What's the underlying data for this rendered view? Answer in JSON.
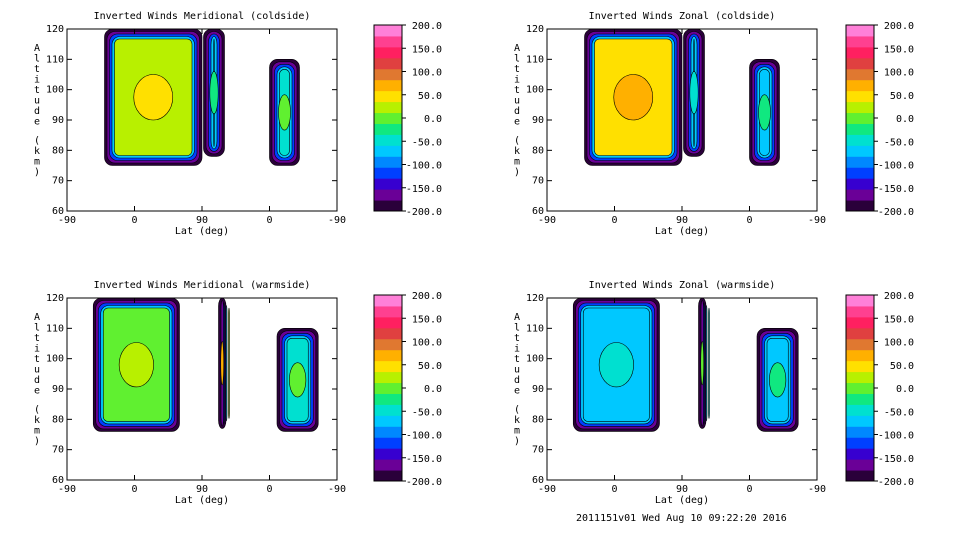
{
  "footer": "2011151v01 Wed Aug 10 09:22:20 2016",
  "colorbar": {
    "ticks": [
      "200.0",
      "150.0",
      "100.0",
      "50.0",
      "0.0",
      "-50.0",
      "-100.0",
      "-150.0",
      "-200.0"
    ],
    "colors": [
      "#2a003a",
      "#6a0097",
      "#3700d0",
      "#0040ff",
      "#0088ff",
      "#00c8ff",
      "#00e0d0",
      "#10e880",
      "#60f030",
      "#b8f000",
      "#ffe000",
      "#ffb000",
      "#e07830",
      "#e04040",
      "#ff2060",
      "#ff4090",
      "#ff80d8"
    ]
  },
  "chart_data": [
    {
      "type": "heatmap",
      "title": "Inverted Winds Meridional (coldside)",
      "xlabel": "Lat (deg)",
      "ylabel": "Altitude (km)",
      "xticks": [
        "-90",
        "0",
        "90",
        "0",
        "-90"
      ],
      "yticks": [
        "60",
        "70",
        "80",
        "90",
        "100",
        "110",
        "120"
      ],
      "ylim": [
        60,
        120
      ],
      "blobs": [
        {
          "xrange": [
            -40,
            90
          ],
          "yrange": [
            75,
            120
          ],
          "value": 20
        },
        {
          "xrange": [
            92,
            120
          ],
          "yrange": [
            78,
            120
          ],
          "value": -60
        },
        {
          "xrange": [
            180,
            220
          ],
          "yrange": [
            75,
            110
          ],
          "value": -40
        }
      ]
    },
    {
      "type": "heatmap",
      "title": "Inverted Winds Zonal (coldside)",
      "xlabel": "Lat (deg)",
      "ylabel": "Altitude (km)",
      "xticks": [
        "-90",
        "0",
        "90",
        "0",
        "-90"
      ],
      "yticks": [
        "60",
        "70",
        "80",
        "90",
        "100",
        "110",
        "120"
      ],
      "ylim": [
        60,
        120
      ],
      "blobs": [
        {
          "xrange": [
            -40,
            90
          ],
          "yrange": [
            75,
            120
          ],
          "value": 40
        },
        {
          "xrange": [
            92,
            120
          ],
          "yrange": [
            78,
            120
          ],
          "value": -80
        },
        {
          "xrange": [
            180,
            220
          ],
          "yrange": [
            75,
            110
          ],
          "value": -60
        }
      ]
    },
    {
      "type": "heatmap",
      "title": "Inverted Winds Meridional (warmside)",
      "xlabel": "Lat (deg)",
      "ylabel": "Altitude (km)",
      "xticks": [
        "-90",
        "0",
        "90",
        "0",
        "-90"
      ],
      "yticks": [
        "60",
        "70",
        "80",
        "90",
        "100",
        "110",
        "120"
      ],
      "ylim": [
        60,
        120
      ],
      "blobs": [
        {
          "xrange": [
            -55,
            60
          ],
          "yrange": [
            76,
            120
          ],
          "value": -10
        },
        {
          "xrange": [
            112,
            122
          ],
          "yrange": [
            77,
            120
          ],
          "value": 30
        },
        {
          "xrange": [
            190,
            245
          ],
          "yrange": [
            76,
            110
          ],
          "value": -40
        }
      ]
    },
    {
      "type": "heatmap",
      "title": "Inverted Winds Zonal (warmside)",
      "xlabel": "Lat (deg)",
      "ylabel": "Altitude (km)",
      "xticks": [
        "-90",
        "0",
        "90",
        "0",
        "-90"
      ],
      "yticks": [
        "60",
        "70",
        "80",
        "90",
        "100",
        "110",
        "120"
      ],
      "ylim": [
        60,
        120
      ],
      "blobs": [
        {
          "xrange": [
            -55,
            60
          ],
          "yrange": [
            76,
            120
          ],
          "value": -70
        },
        {
          "xrange": [
            112,
            122
          ],
          "yrange": [
            77,
            120
          ],
          "value": -40
        },
        {
          "xrange": [
            190,
            245
          ],
          "yrange": [
            76,
            110
          ],
          "value": -60
        }
      ]
    }
  ]
}
